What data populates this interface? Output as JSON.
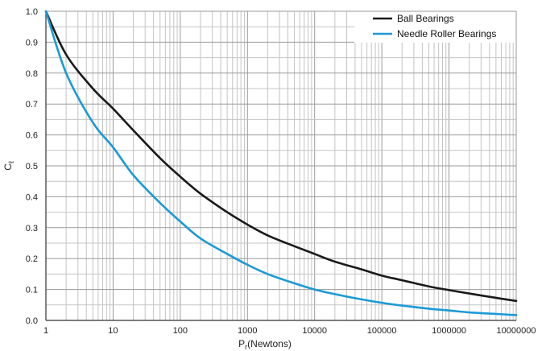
{
  "chart_data": {
    "type": "line",
    "title": "",
    "xlabel": {
      "main": "P",
      "subscript": "r",
      "suffix": "(Newtons)"
    },
    "ylabel": {
      "main": "C",
      "subscript": "ℓ"
    },
    "x_scale": "log",
    "xlim": [
      1,
      10000000
    ],
    "ylim": [
      0.0,
      1.0
    ],
    "grid": true,
    "legend_position": "top-right",
    "x_tick_labels": [
      "1",
      "10",
      "100",
      "1000",
      "10000",
      "100000",
      "1000000",
      "10000000"
    ],
    "y_tick_labels": [
      "0.0",
      "0.1",
      "0.2",
      "0.3",
      "0.4",
      "0.5",
      "0.6",
      "0.7",
      "0.8",
      "0.9",
      "1.0"
    ],
    "series": [
      {
        "name": "Ball Bearings",
        "color": "#1a1a1a",
        "x": [
          1,
          2,
          5,
          10,
          20,
          50,
          100,
          200,
          500,
          1000,
          2000,
          5000,
          10000,
          20000,
          50000,
          100000,
          200000,
          500000,
          1000000,
          2000000,
          5000000,
          10000000
        ],
        "values": [
          1.0,
          0.86,
          0.75,
          0.685,
          0.615,
          0.525,
          0.465,
          0.41,
          0.35,
          0.31,
          0.275,
          0.24,
          0.215,
          0.19,
          0.165,
          0.145,
          0.13,
          0.11,
          0.098,
          0.087,
          0.073,
          0.063
        ]
      },
      {
        "name": "Needle Roller Bearings",
        "color": "#1b9ad6",
        "x": [
          1,
          2,
          5,
          10,
          20,
          50,
          100,
          200,
          500,
          1000,
          2000,
          5000,
          10000,
          20000,
          50000,
          100000,
          200000,
          500000,
          1000000,
          2000000,
          5000000,
          10000000
        ],
        "values": [
          1.0,
          0.8,
          0.64,
          0.56,
          0.47,
          0.38,
          0.32,
          0.265,
          0.215,
          0.18,
          0.15,
          0.12,
          0.1,
          0.085,
          0.068,
          0.057,
          0.048,
          0.038,
          0.032,
          0.026,
          0.021,
          0.017
        ]
      }
    ]
  }
}
